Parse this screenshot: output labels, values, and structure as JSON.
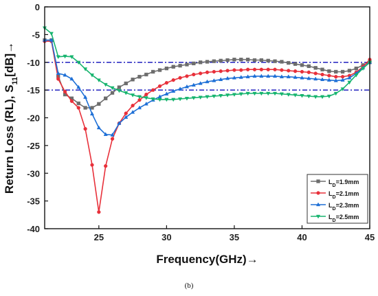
{
  "caption": "(b)",
  "chart_data": {
    "type": "line",
    "xlabel": "Frequency(GHz)→",
    "ylabel": "Return Loss (RL), S11[dB]→",
    "xlim": [
      21,
      45
    ],
    "ylim": [
      -40,
      0
    ],
    "xticks": [
      "25",
      "30",
      "35",
      "40",
      "45"
    ],
    "yticks": [
      "0",
      "-5",
      "-10",
      "-15",
      "-20",
      "-25",
      "-30",
      "-35",
      "-40"
    ],
    "grid": false,
    "legend_position": "bottom-right",
    "reference_lines": [
      {
        "y": -10,
        "style": "dash-dot",
        "color": "#1f1fbf"
      },
      {
        "y": -15,
        "style": "dash-dot",
        "color": "#1f1fbf"
      }
    ],
    "series": [
      {
        "name": "LD=1.9mm",
        "legend_main": "L",
        "legend_sub": "D",
        "legend_rest": "=1.9mm",
        "color": "#6d6d6d",
        "marker": "square",
        "x": [
          21,
          21.5,
          22,
          22.5,
          23,
          23.5,
          24,
          24.5,
          25,
          25.5,
          26,
          26.5,
          27,
          27.5,
          28,
          28.5,
          29,
          29.5,
          30,
          30.5,
          31,
          31.5,
          32,
          32.5,
          33,
          33.5,
          34,
          34.5,
          35,
          35.5,
          36,
          36.5,
          37,
          37.5,
          38,
          38.5,
          39,
          39.5,
          40,
          40.5,
          41,
          41.5,
          42,
          42.5,
          43,
          43.5,
          44,
          44.5,
          45
        ],
        "y": [
          -6,
          -6,
          -12.5,
          -15.8,
          -16.5,
          -17.4,
          -18.2,
          -18.2,
          -17.5,
          -16.5,
          -15.5,
          -14.5,
          -13.8,
          -13.1,
          -12.6,
          -12.2,
          -11.7,
          -11.4,
          -11.1,
          -10.8,
          -10.6,
          -10.4,
          -10.2,
          -10.0,
          -9.9,
          -9.8,
          -9.7,
          -9.6,
          -9.5,
          -9.5,
          -9.5,
          -9.6,
          -9.6,
          -9.7,
          -9.8,
          -9.9,
          -10.1,
          -10.3,
          -10.5,
          -10.7,
          -11.0,
          -11.3,
          -11.6,
          -11.7,
          -11.7,
          -11.5,
          -11.1,
          -10.5,
          -10.0
        ]
      },
      {
        "name": "LD=2.1mm",
        "legend_main": "L",
        "legend_sub": "D",
        "legend_rest": "=2.1mm",
        "color": "#e8303a",
        "marker": "circle",
        "x": [
          21,
          21.5,
          22,
          22.5,
          23,
          23.5,
          24,
          24.5,
          25,
          25.5,
          26,
          26.5,
          27,
          27.5,
          28,
          28.5,
          29,
          29.5,
          30,
          30.5,
          31,
          31.5,
          32,
          32.5,
          33,
          33.5,
          34,
          34.5,
          35,
          35.5,
          36,
          36.5,
          37,
          37.5,
          38,
          38.5,
          39,
          39.5,
          40,
          40.5,
          41,
          41.5,
          42,
          42.5,
          43,
          43.5,
          44,
          44.5,
          45
        ],
        "y": [
          -6.2,
          -6.2,
          -13.0,
          -15.3,
          -17.0,
          -18.2,
          -22.0,
          -28.5,
          -37.0,
          -28.7,
          -23.8,
          -21.0,
          -19.2,
          -17.8,
          -16.8,
          -15.8,
          -15.0,
          -14.3,
          -13.7,
          -13.2,
          -12.8,
          -12.5,
          -12.2,
          -12.0,
          -11.8,
          -11.7,
          -11.6,
          -11.5,
          -11.4,
          -11.4,
          -11.3,
          -11.3,
          -11.3,
          -11.3,
          -11.3,
          -11.4,
          -11.5,
          -11.6,
          -11.7,
          -11.8,
          -12.0,
          -12.2,
          -12.4,
          -12.6,
          -12.6,
          -12.4,
          -11.8,
          -10.8,
          -9.5
        ]
      },
      {
        "name": "LD=2.3mm",
        "legend_main": "L",
        "legend_sub": "D",
        "legend_rest": "=2.3mm",
        "color": "#1d6fd6",
        "marker": "triangle-up",
        "x": [
          21,
          21.5,
          22,
          22.5,
          23,
          23.5,
          24,
          24.5,
          25,
          25.5,
          26,
          26.5,
          27,
          27.5,
          28,
          28.5,
          29,
          29.5,
          30,
          30.5,
          31,
          31.5,
          32,
          32.5,
          33,
          33.5,
          34,
          34.5,
          35,
          35.5,
          36,
          36.5,
          37,
          37.5,
          38,
          38.5,
          39,
          39.5,
          40,
          40.5,
          41,
          41.5,
          42,
          42.5,
          43,
          43.5,
          44,
          44.5,
          45
        ],
        "y": [
          -6,
          -6,
          -12.0,
          -12.3,
          -13.0,
          -14.5,
          -16.3,
          -19.3,
          -21.8,
          -23.0,
          -23.1,
          -21.0,
          -19.9,
          -19.0,
          -18.2,
          -17.5,
          -16.8,
          -16.2,
          -15.7,
          -15.2,
          -14.8,
          -14.4,
          -14.1,
          -13.8,
          -13.5,
          -13.3,
          -13.1,
          -12.9,
          -12.8,
          -12.7,
          -12.6,
          -12.5,
          -12.5,
          -12.5,
          -12.5,
          -12.6,
          -12.6,
          -12.7,
          -12.8,
          -12.9,
          -13.0,
          -13.1,
          -13.2,
          -13.3,
          -13.2,
          -12.8,
          -12.0,
          -11.0,
          -10.0
        ]
      },
      {
        "name": "LD=2.5mm",
        "legend_main": "L",
        "legend_sub": "D",
        "legend_rest": "=2.5mm",
        "color": "#16b46e",
        "marker": "triangle-down",
        "x": [
          21,
          21.5,
          22,
          22.5,
          23,
          23.5,
          24,
          24.5,
          25,
          25.5,
          26,
          26.5,
          27,
          27.5,
          28,
          28.5,
          29,
          29.5,
          30,
          30.5,
          31,
          31.5,
          32,
          32.5,
          33,
          33.5,
          34,
          34.5,
          35,
          35.5,
          36,
          36.5,
          37,
          37.5,
          38,
          38.5,
          39,
          39.5,
          40,
          40.5,
          41,
          41.5,
          42,
          42.5,
          43,
          43.5,
          44,
          44.5,
          45
        ],
        "y": [
          -3.8,
          -4.8,
          -9.0,
          -8.9,
          -9.0,
          -10.0,
          -11.2,
          -12.3,
          -13.2,
          -14.0,
          -14.6,
          -15.1,
          -15.5,
          -15.9,
          -16.2,
          -16.4,
          -16.6,
          -16.7,
          -16.7,
          -16.7,
          -16.6,
          -16.5,
          -16.4,
          -16.3,
          -16.2,
          -16.1,
          -16.0,
          -15.9,
          -15.8,
          -15.7,
          -15.6,
          -15.6,
          -15.6,
          -15.6,
          -15.6,
          -15.7,
          -15.8,
          -15.9,
          -16.0,
          -16.1,
          -16.2,
          -16.2,
          -16.1,
          -15.6,
          -14.8,
          -13.6,
          -12.3,
          -11.1,
          -10.0
        ]
      }
    ]
  }
}
